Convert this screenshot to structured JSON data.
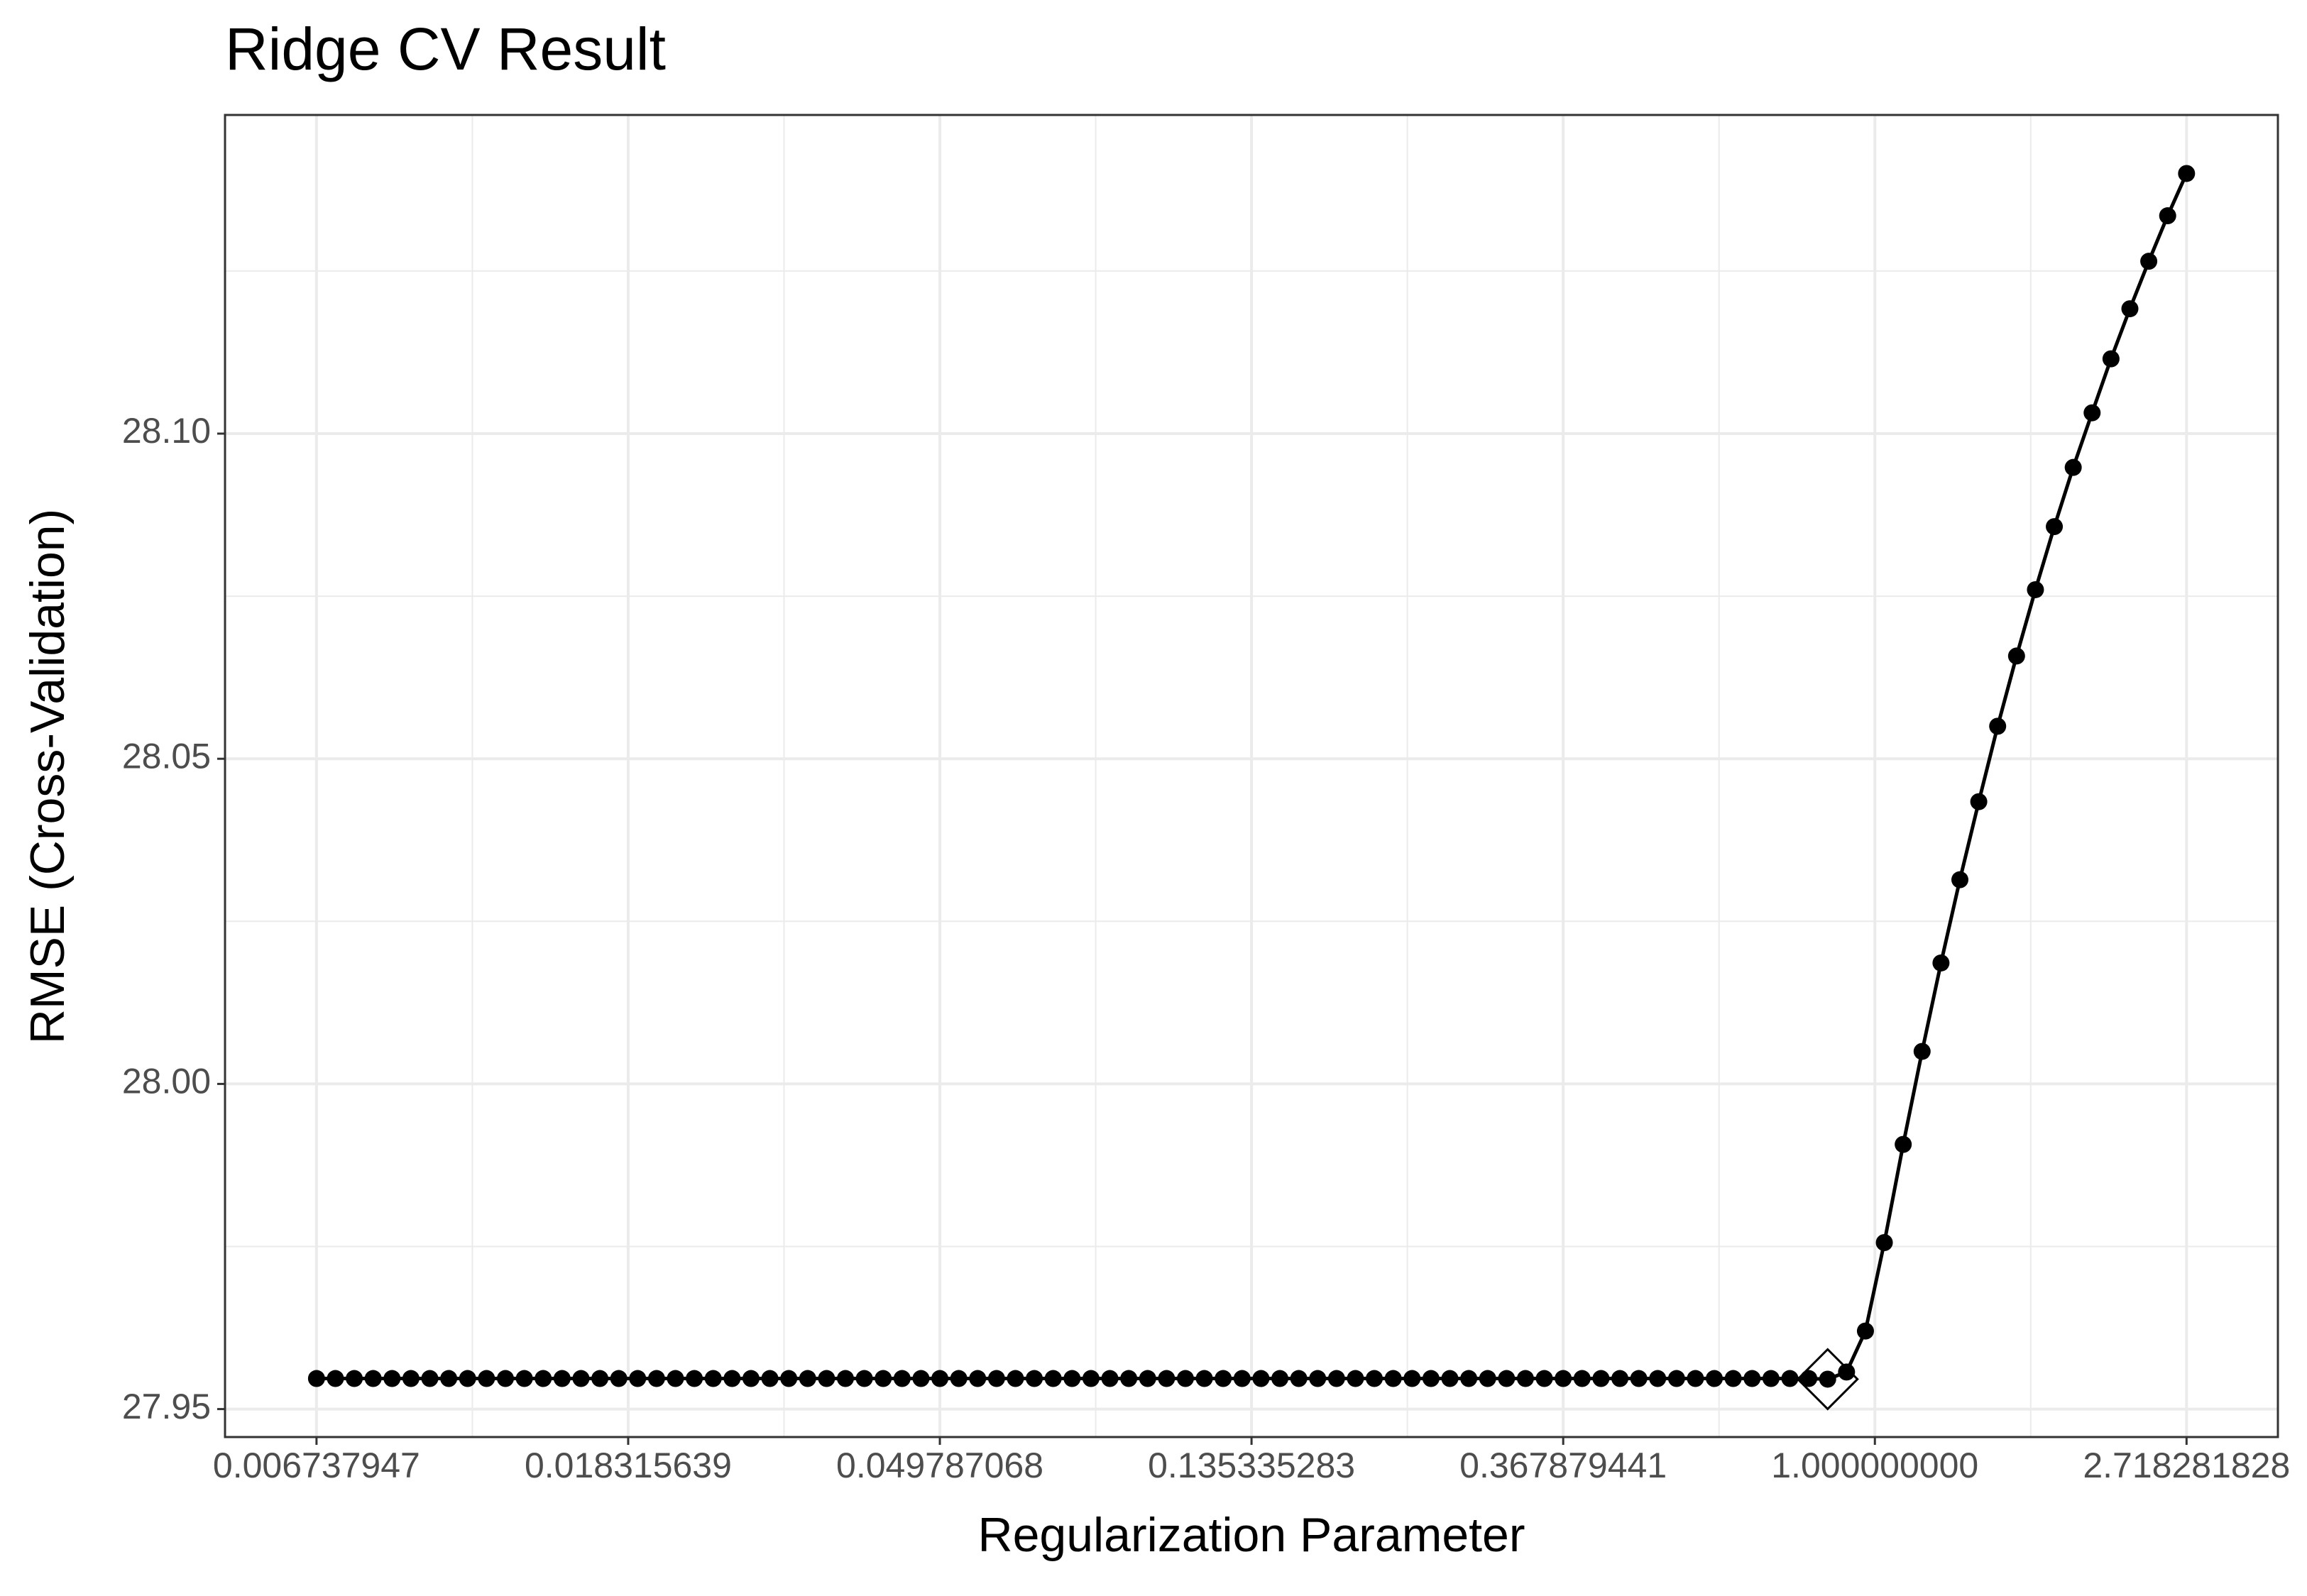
{
  "chart_data": {
    "type": "line",
    "title": "Ridge CV Result",
    "x_label": "Regularization Parameter",
    "y_label": "RMSE (Cross-Validation)",
    "x_log": true,
    "grid": true,
    "color": "#000000",
    "xlim": [
      0.005024,
      3.644
    ],
    "ylim": [
      27.9457,
      28.149
    ],
    "xticks": [
      {
        "value": 0.006737947,
        "label": "0.006737947"
      },
      {
        "value": 0.018315639,
        "label": "0.018315639"
      },
      {
        "value": 0.049787068,
        "label": "0.049787068"
      },
      {
        "value": 0.135335283,
        "label": "0.135335283"
      },
      {
        "value": 0.367879441,
        "label": "0.367879441"
      },
      {
        "value": 1,
        "label": "1.000000000"
      },
      {
        "value": 2.718281828,
        "label": "2.718281828"
      }
    ],
    "yticks": [
      {
        "value": 27.95,
        "label": "27.95"
      },
      {
        "value": 28,
        "label": "28.00"
      },
      {
        "value": 28.05,
        "label": "28.05"
      },
      {
        "value": 28.1,
        "label": "28.10"
      }
    ],
    "x": [
      0.006738,
      0.007159,
      0.007606,
      0.008081,
      0.008586,
      0.009122,
      0.009692,
      0.010298,
      0.010941,
      0.011625,
      0.012353,
      0.013125,
      0.013945,
      0.014816,
      0.015742,
      0.016725,
      0.01777,
      0.01888,
      0.02006,
      0.021313,
      0.022646,
      0.024061,
      0.025564,
      0.027161,
      0.028858,
      0.030661,
      0.032577,
      0.034612,
      0.036775,
      0.039073,
      0.041513,
      0.044107,
      0.046863,
      0.049787,
      0.052898,
      0.056203,
      0.059715,
      0.063446,
      0.06741,
      0.071622,
      0.076096,
      0.080851,
      0.085903,
      0.09127,
      0.096973,
      0.103032,
      0.10947,
      0.11631,
      0.123577,
      0.131298,
      0.139498,
      0.148214,
      0.157475,
      0.167314,
      0.177768,
      0.188875,
      0.200676,
      0.213215,
      0.226537,
      0.240691,
      0.25573,
      0.271709,
      0.288685,
      0.306723,
      0.325887,
      0.346249,
      0.367879,
      0.390865,
      0.415287,
      0.441235,
      0.468804,
      0.498096,
      0.529218,
      0.562285,
      0.597418,
      0.634746,
      0.674406,
      0.716544,
      0.761315,
      0.808883,
      0.859405,
      0.913103,
      0.970157,
      1.030767,
      1.095177,
      1.163608,
      1.236314,
      1.313562,
      1.395636,
      1.48284,
      1.57547,
      1.673919,
      1.778508,
      1.889632,
      2.007699,
      2.133143,
      2.266425,
      2.408036,
      2.558496,
      2.718282
    ],
    "values": [
      27.9547,
      27.9547,
      27.9547,
      27.9547,
      27.9547,
      27.9547,
      27.9547,
      27.9547,
      27.9547,
      27.9547,
      27.9547,
      27.9547,
      27.9547,
      27.9547,
      27.9547,
      27.9547,
      27.9547,
      27.9547,
      27.9547,
      27.9547,
      27.9547,
      27.9547,
      27.9547,
      27.9547,
      27.9547,
      27.9547,
      27.9547,
      27.9547,
      27.9547,
      27.9547,
      27.9547,
      27.9547,
      27.9547,
      27.9547,
      27.9547,
      27.9547,
      27.9547,
      27.9547,
      27.9547,
      27.9547,
      27.9547,
      27.9547,
      27.9547,
      27.9547,
      27.9547,
      27.9547,
      27.9547,
      27.9547,
      27.9547,
      27.9547,
      27.9547,
      27.9547,
      27.9547,
      27.9547,
      27.9547,
      27.9547,
      27.9547,
      27.9547,
      27.9547,
      27.9547,
      27.9547,
      27.9547,
      27.9547,
      27.9547,
      27.9547,
      27.9547,
      27.9547,
      27.9547,
      27.9547,
      27.9547,
      27.9547,
      27.9547,
      27.9547,
      27.9547,
      27.9547,
      27.9547,
      27.9547,
      27.9547,
      27.9547,
      27.9547,
      27.9546,
      27.9557,
      27.962,
      27.9756,
      27.9907,
      28.005,
      28.0186,
      28.0314,
      28.0434,
      28.055,
      28.0658,
      28.076,
      28.0857,
      28.0948,
      28.1032,
      28.1115,
      28.1192,
      28.1265,
      28.1335,
      28.14
    ],
    "optimum": {
      "x": 0.859405,
      "value": 27.9546
    }
  }
}
